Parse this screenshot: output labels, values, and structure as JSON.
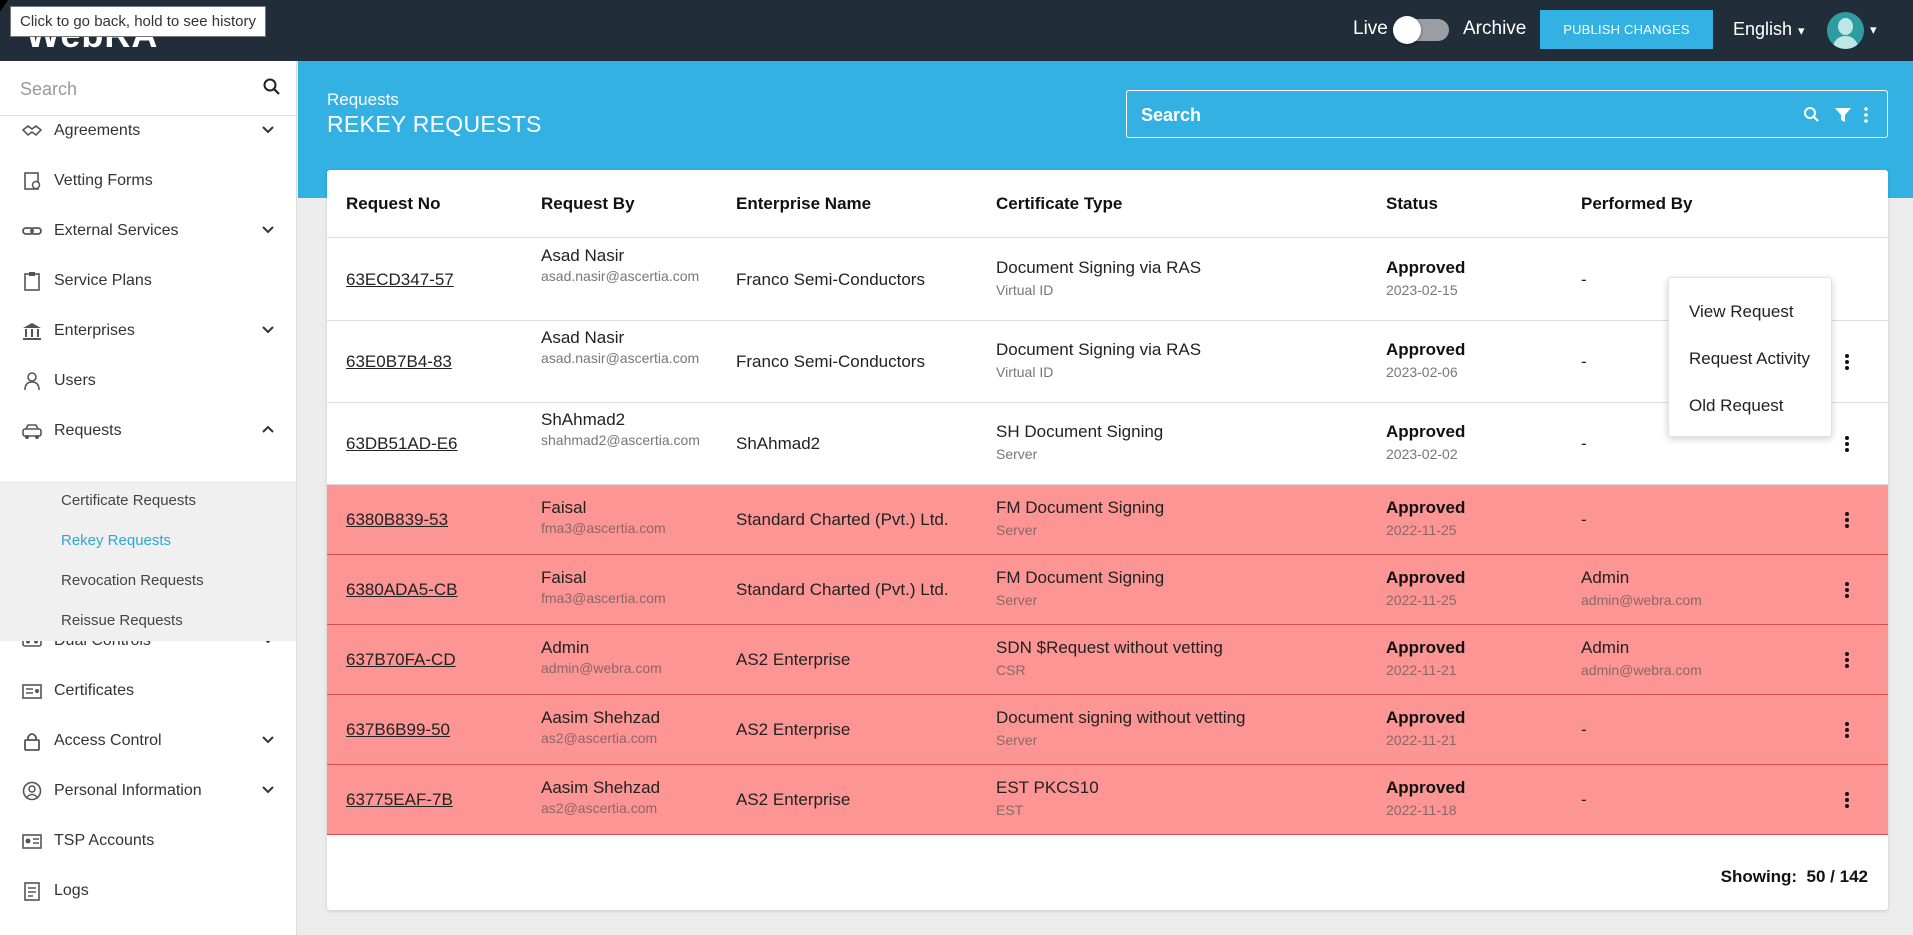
{
  "app": {
    "title": "WebRA"
  },
  "tooltip": "Click to go back, hold to see history",
  "topbar": {
    "live_label": "Live",
    "archive_label": "Archive",
    "publish_label": "PUBLISH CHANGES",
    "language": "English",
    "caret": "▾"
  },
  "sidebar": {
    "search_placeholder": "Search",
    "items": [
      {
        "label": "Agreements",
        "icon": "handshake-icon",
        "expandable": true
      },
      {
        "label": "Vetting Forms",
        "icon": "form-icon",
        "expandable": false
      },
      {
        "label": "External Services",
        "icon": "link-icon",
        "expandable": true
      },
      {
        "label": "Service Plans",
        "icon": "clipboard-icon",
        "expandable": false
      },
      {
        "label": "Enterprises",
        "icon": "bank-icon",
        "expandable": true
      },
      {
        "label": "Users",
        "icon": "user-icon",
        "expandable": false
      },
      {
        "label": "Requests",
        "icon": "car-icon",
        "expandable": true,
        "expanded": true
      },
      {
        "label": "Dual Controls",
        "icon": "dual-control-icon",
        "expandable": true
      },
      {
        "label": "Certificates",
        "icon": "certificate-icon",
        "expandable": false
      },
      {
        "label": "Access Control",
        "icon": "lock-icon",
        "expandable": true
      },
      {
        "label": "Personal Information",
        "icon": "user-circle-icon",
        "expandable": true
      },
      {
        "label": "TSP Accounts",
        "icon": "id-card-icon",
        "expandable": false
      },
      {
        "label": "Logs",
        "icon": "log-icon",
        "expandable": false
      }
    ],
    "sub_items": [
      {
        "label": "Certificate Requests",
        "active": false
      },
      {
        "label": "Rekey Requests",
        "active": true
      },
      {
        "label": "Revocation Requests",
        "active": false
      },
      {
        "label": "Reissue Requests",
        "active": false
      }
    ]
  },
  "main": {
    "breadcrumb": "Requests",
    "title": "REKEY REQUESTS",
    "search_placeholder": "Search"
  },
  "table": {
    "headers": [
      "Request No",
      "Request By",
      "Enterprise Name",
      "Certificate Type",
      "Status",
      "Performed By"
    ],
    "rows": [
      {
        "req_no": "63ECD347-57",
        "by_name": "Asad Nasir",
        "by_email": "asad.nasir@ascertia.com",
        "enterprise": "Franco Semi-Conductors",
        "cert_type": "Document Signing via RAS",
        "cert_sub": "Virtual ID",
        "status": "Approved",
        "date": "2023-02-15",
        "perf_name": "-",
        "perf_email": "",
        "flagged": false
      },
      {
        "req_no": "63E0B7B4-83",
        "by_name": "Asad Nasir",
        "by_email": "asad.nasir@ascertia.com",
        "enterprise": "Franco Semi-Conductors",
        "cert_type": "Document Signing via RAS",
        "cert_sub": "Virtual ID",
        "status": "Approved",
        "date": "2023-02-06",
        "perf_name": "-",
        "perf_email": "",
        "flagged": false
      },
      {
        "req_no": "63DB51AD-E6",
        "by_name": "ShAhmad2",
        "by_email": "shahmad2@ascertia.com",
        "enterprise": "ShAhmad2",
        "cert_type": "SH Document Signing",
        "cert_sub": "Server",
        "status": "Approved",
        "date": "2023-02-02",
        "perf_name": "-",
        "perf_email": "",
        "flagged": false
      },
      {
        "req_no": "6380B839-53",
        "by_name": "Faisal",
        "by_email": "fma3@ascertia.com",
        "enterprise": "Standard Charted (Pvt.) Ltd.",
        "cert_type": "FM Document Signing",
        "cert_sub": "Server",
        "status": "Approved",
        "date": "2022-11-25",
        "perf_name": "-",
        "perf_email": "",
        "flagged": true
      },
      {
        "req_no": "6380ADA5-CB",
        "by_name": "Faisal",
        "by_email": "fma3@ascertia.com",
        "enterprise": "Standard Charted (Pvt.) Ltd.",
        "cert_type": "FM Document Signing",
        "cert_sub": "Server",
        "status": "Approved",
        "date": "2022-11-25",
        "perf_name": "Admin",
        "perf_email": "admin@webra.com",
        "flagged": true
      },
      {
        "req_no": "637B70FA-CD",
        "by_name": "Admin",
        "by_email": "admin@webra.com",
        "enterprise": "AS2 Enterprise",
        "cert_type": "SDN $Request without vetting",
        "cert_sub": "CSR",
        "status": "Approved",
        "date": "2022-11-21",
        "perf_name": "Admin",
        "perf_email": "admin@webra.com",
        "flagged": true
      },
      {
        "req_no": "637B6B99-50",
        "by_name": "Aasim Shehzad",
        "by_email": "as2@ascertia.com",
        "enterprise": "AS2 Enterprise",
        "cert_type": "Document signing without vetting",
        "cert_sub": "Server",
        "status": "Approved",
        "date": "2022-11-21",
        "perf_name": "-",
        "perf_email": "",
        "flagged": true
      },
      {
        "req_no": "63775EAF-7B",
        "by_name": "Aasim Shehzad",
        "by_email": "as2@ascertia.com",
        "enterprise": "AS2 Enterprise",
        "cert_type": "EST PKCS10",
        "cert_sub": "EST",
        "status": "Approved",
        "date": "2022-11-18",
        "perf_name": "-",
        "perf_email": "",
        "flagged": true
      }
    ],
    "footer": {
      "label": "Showing:",
      "value": "50 / 142"
    }
  },
  "context_menu": {
    "items": [
      "View Request",
      "Request Activity",
      "Old Request"
    ]
  },
  "colors": {
    "topbar": "#222d3a",
    "accent": "#33b1e3",
    "flagged_row": "#fe9595",
    "active_sub": "#2aa9d9"
  }
}
